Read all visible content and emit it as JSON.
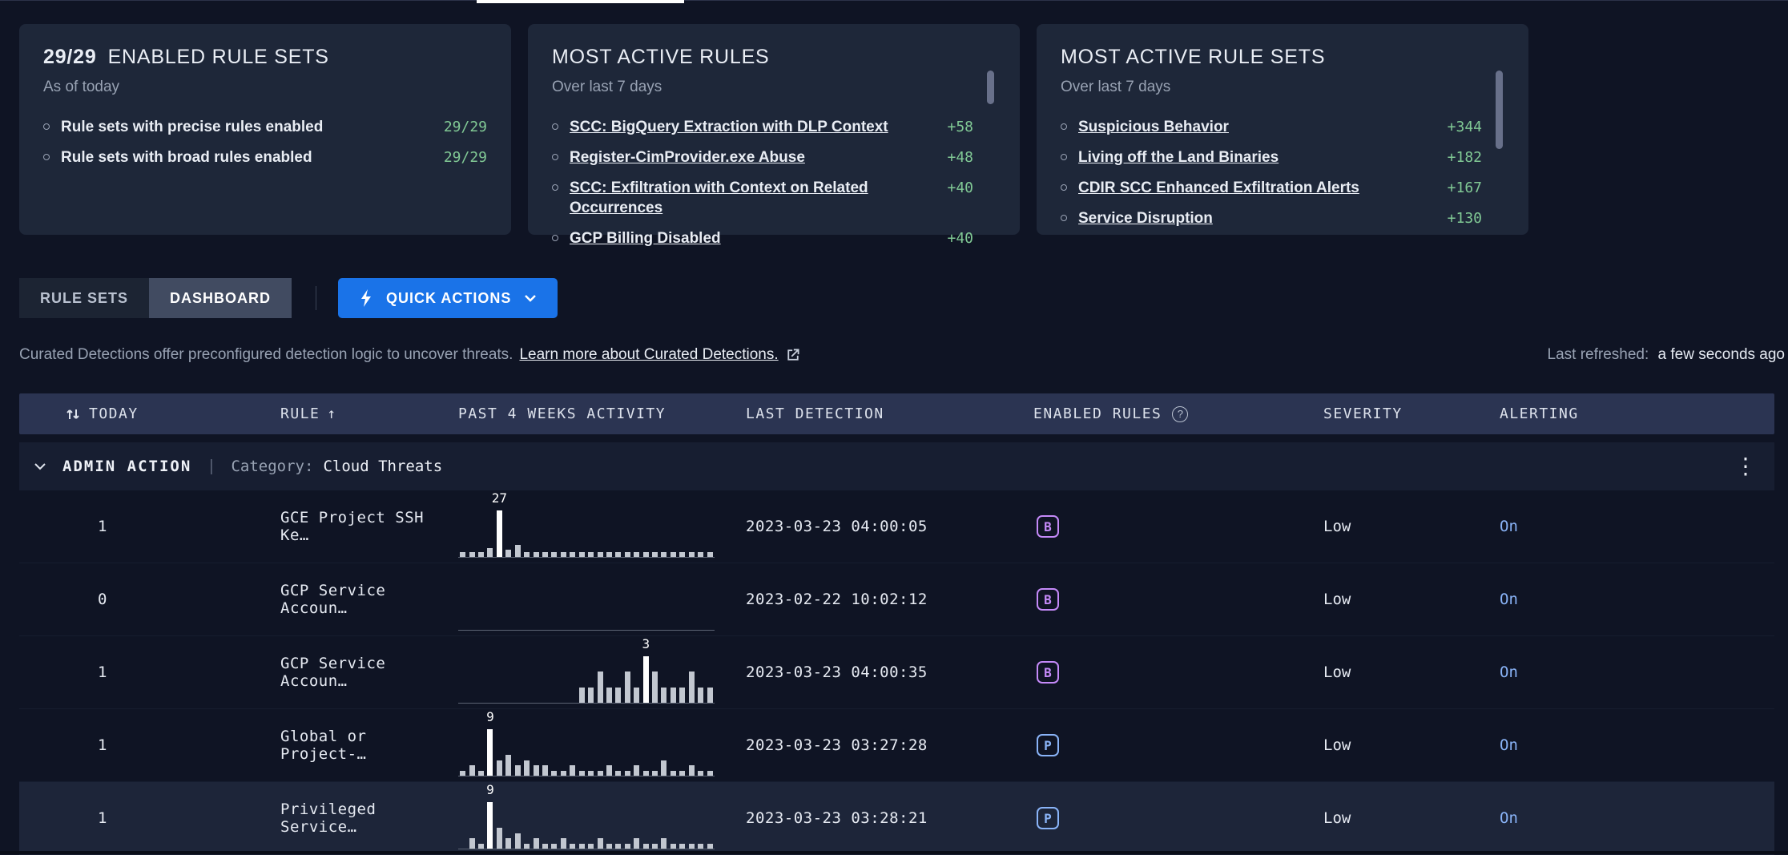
{
  "colors": {
    "green": "#81c995",
    "accent_blue": "#1a73e8",
    "alert_on": "#8ab4f8",
    "badge_broad": "#c58af9",
    "badge_precise": "#8ab4f8",
    "bar": "#c2c7d0",
    "bar_peak": "#ffffff"
  },
  "summary_cards": [
    {
      "title_value": "29/29",
      "title": "ENABLED RULE SETS",
      "subtitle": "As of today",
      "items_are_links": false,
      "items": [
        {
          "label": "Rule sets with precise rules enabled",
          "value": "29/29"
        },
        {
          "label": "Rule sets with broad rules enabled",
          "value": "29/29"
        }
      ]
    },
    {
      "title": "MOST ACTIVE RULES",
      "subtitle": "Over last 7 days",
      "items_are_links": true,
      "items": [
        {
          "label": "SCC: BigQuery Extraction with DLP Context",
          "value": "+58"
        },
        {
          "label": "Register-CimProvider.exe Abuse",
          "value": "+48"
        },
        {
          "label": "SCC: Exfiltration with Context on Related Occurrences",
          "value": "+40"
        },
        {
          "label": "GCP Billing Disabled",
          "value": "+40"
        }
      ]
    },
    {
      "title": "MOST ACTIVE RULE SETS",
      "subtitle": "Over last 7 days",
      "items_are_links": true,
      "items": [
        {
          "label": "Suspicious Behavior",
          "value": "+344"
        },
        {
          "label": "Living off the Land Binaries",
          "value": "+182"
        },
        {
          "label": "CDIR SCC Enhanced Exfiltration Alerts",
          "value": "+167"
        },
        {
          "label": "Service Disruption",
          "value": "+130"
        }
      ]
    }
  ],
  "toolbar": {
    "rule_sets_label": "RULE SETS",
    "dashboard_label": "DASHBOARD",
    "quick_actions_label": "QUICK ACTIONS"
  },
  "description": {
    "text": "Curated Detections offer preconfigured detection logic to uncover threats.",
    "link": "Learn more about Curated Detections.",
    "last_refreshed_label": "Last refreshed:",
    "last_refreshed_value": "a few seconds ago"
  },
  "table": {
    "headers": {
      "today": "TODAY",
      "rule": "RULE",
      "activity": "PAST 4 WEEKS ACTIVITY",
      "last_detection": "LAST DETECTION",
      "enabled_rules": "ENABLED RULES",
      "severity": "SEVERITY",
      "alerting": "ALERTING"
    },
    "group": {
      "name": "ADMIN ACTION",
      "separator": "|",
      "category_label": "Category:",
      "category_value": "Cloud Threats"
    },
    "rows": [
      {
        "today": "1",
        "rule": "GCE Project SSH Ke…",
        "chart": {
          "peak": 27,
          "values": [
            1,
            3,
            2,
            5,
            27,
            4,
            7,
            3,
            2,
            3,
            1,
            2,
            1,
            2,
            1,
            1,
            3,
            1,
            1,
            2,
            1,
            1,
            1,
            2,
            1,
            1,
            2,
            1
          ]
        },
        "last_detection": "2023-03-23 04:00:05",
        "badge": "B",
        "severity": "Low",
        "alerting": "On",
        "highlighted": false
      },
      {
        "today": "0",
        "rule": "GCP Service Accoun…",
        "chart": {
          "values": [
            0,
            0,
            0,
            0,
            0,
            0,
            0,
            0,
            0,
            0,
            0,
            0,
            0,
            0,
            0,
            0,
            0,
            0,
            0,
            0,
            0,
            0,
            0,
            0,
            0,
            0,
            0,
            0
          ]
        },
        "last_detection": "2023-02-22 10:02:12",
        "badge": "B",
        "severity": "Low",
        "alerting": "On",
        "highlighted": false
      },
      {
        "today": "1",
        "rule": "GCP Service Accoun…",
        "chart": {
          "peak": 3,
          "values": [
            0,
            0,
            0,
            0,
            0,
            0,
            0,
            0,
            0,
            0,
            0,
            0,
            0,
            1,
            1,
            2,
            1,
            1,
            2,
            1,
            3,
            2,
            1,
            1,
            1,
            2,
            1,
            1
          ]
        },
        "last_detection": "2023-03-23 04:00:35",
        "badge": "B",
        "severity": "Low",
        "alerting": "On",
        "highlighted": false
      },
      {
        "today": "1",
        "rule": "Global or Project-…",
        "chart": {
          "peak": 9,
          "values": [
            1,
            2,
            1,
            9,
            3,
            4,
            2,
            3,
            2,
            2,
            1,
            1,
            2,
            1,
            1,
            1,
            2,
            1,
            1,
            2,
            1,
            1,
            3,
            1,
            1,
            2,
            1,
            1
          ]
        },
        "last_detection": "2023-03-23 03:27:28",
        "badge": "P",
        "severity": "Low",
        "alerting": "On",
        "highlighted": false
      },
      {
        "today": "1",
        "rule": "Privileged Service…",
        "chart": {
          "peak": 9,
          "values": [
            0,
            2,
            1,
            9,
            4,
            2,
            3,
            1,
            2,
            1,
            1,
            2,
            1,
            1,
            1,
            2,
            1,
            1,
            1,
            2,
            1,
            1,
            2,
            1,
            1,
            1,
            1,
            1
          ]
        },
        "last_detection": "2023-03-23 03:28:21",
        "badge": "P",
        "severity": "Low",
        "alerting": "On",
        "highlighted": true
      }
    ]
  }
}
